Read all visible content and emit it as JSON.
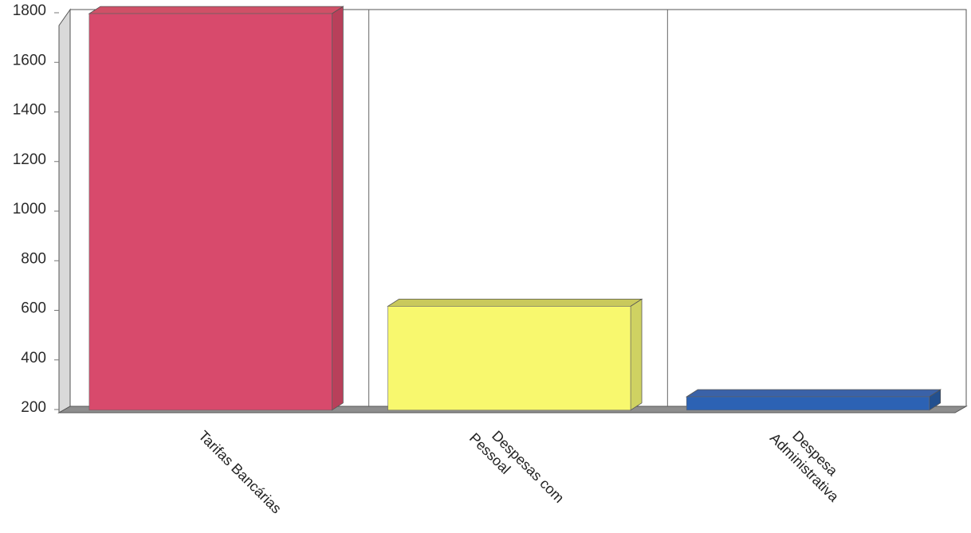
{
  "chart_data": {
    "type": "bar",
    "title": "",
    "xlabel": "",
    "ylabel": "",
    "ylim": [
      200,
      1800
    ],
    "yticks": [
      200,
      400,
      600,
      800,
      1000,
      1200,
      1400,
      1600,
      1800
    ],
    "categories": [
      [
        "Tarifas Bancárias"
      ],
      [
        "Despesas com",
        "Pessoal"
      ],
      [
        "Despesa",
        "Administrativa"
      ]
    ],
    "values": [
      1790,
      610,
      245
    ],
    "colors": {
      "bar_front": [
        "#d84a6c",
        "#f8f86e",
        "#2c62b4"
      ],
      "bar_top": [
        "#d05067",
        "#c9c95c",
        "#3a62a8"
      ],
      "bar_side": [
        "#b8405a",
        "#cfd262",
        "#23508f"
      ]
    },
    "grid": true,
    "legend": "none",
    "style": "3d-bar"
  }
}
